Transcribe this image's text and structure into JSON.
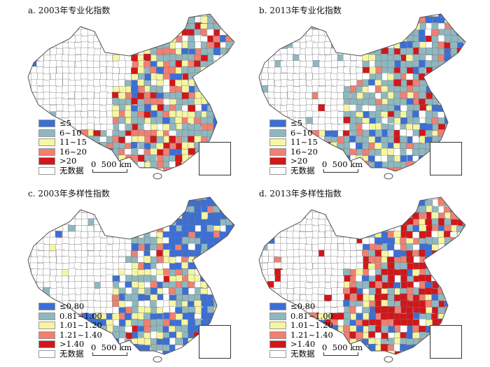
{
  "panels": [
    {
      "title": "a. 2003年专业化指数",
      "legend": [
        "≤5",
        "6~10",
        "11~15",
        "16~20",
        ">20",
        "无数据"
      ],
      "scheme": "spec2003"
    },
    {
      "title": "b. 2013年专业化指数",
      "legend": [
        "≤5",
        "6~10",
        "11~15",
        "16~20",
        ">20",
        "无数据"
      ],
      "scheme": "spec2013"
    },
    {
      "title": "c. 2003年多样性指数",
      "legend": [
        "≤0.80",
        "0.81~1.00",
        "1.01~1.20",
        "1.21~1.40",
        ">1.40",
        "无数据"
      ],
      "scheme": "div2003"
    },
    {
      "title": "d. 2013年多样性指数",
      "legend": [
        "≤0.80",
        "0.81~1.00",
        "1.01~1.20",
        "1.21~1.40",
        ">1.40",
        "无数据"
      ],
      "scheme": "div2013"
    }
  ],
  "scale_label": "0  500 km",
  "colors": [
    "#3b6fd6",
    "#8fb7bf",
    "#f6f6a2",
    "#ef8072",
    "#d2161a",
    "#ffffff"
  ]
}
